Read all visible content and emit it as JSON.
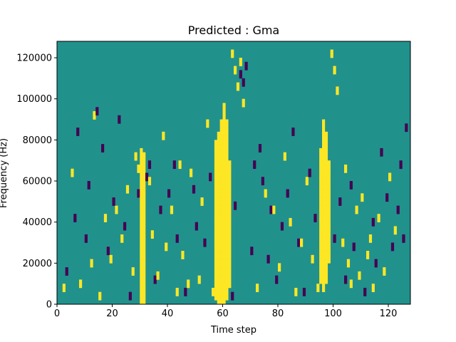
{
  "chart_data": {
    "type": "heatmap",
    "title": "Predicted : Gma",
    "xlabel": "Time step",
    "ylabel": "Frequency (Hz)",
    "xlim": [
      0,
      128
    ],
    "ylim": [
      0,
      128000
    ],
    "x_ticks": [
      0,
      20,
      40,
      60,
      80,
      100,
      120
    ],
    "y_ticks": [
      0,
      20000,
      40000,
      60000,
      80000,
      100000,
      120000
    ],
    "x_tick_labels": [
      "0",
      "20",
      "40",
      "60",
      "80",
      "100",
      "120"
    ],
    "y_tick_labels": [
      "0",
      "20000",
      "40000",
      "60000",
      "80000",
      "100000",
      "120000"
    ],
    "grid": false,
    "colormap": "viridis",
    "colors": {
      "background_value": "#21918c",
      "high_value": "#fde725",
      "low_value": "#440154"
    },
    "bins": {
      "time_steps": 128,
      "frequency_bins": 64,
      "bin_width_hz": 2000
    },
    "high_columns": [
      {
        "x": 30,
        "y": [
          0,
          76000
        ]
      },
      {
        "x": 31,
        "y": [
          0,
          74000
        ]
      },
      {
        "x": 57,
        "y": [
          2000,
          80000
        ]
      },
      {
        "x": 58,
        "y": [
          0,
          84000
        ]
      },
      {
        "x": 59,
        "y": [
          0,
          90000
        ]
      },
      {
        "x": 60,
        "y": [
          0,
          98000
        ]
      },
      {
        "x": 61,
        "y": [
          2000,
          90000
        ]
      },
      {
        "x": 62,
        "y": [
          8000,
          70000
        ]
      },
      {
        "x": 95,
        "y": [
          10000,
          76000
        ]
      },
      {
        "x": 96,
        "y": [
          6000,
          90000
        ]
      },
      {
        "x": 97,
        "y": [
          10000,
          84000
        ]
      },
      {
        "x": 98,
        "y": [
          20000,
          70000
        ]
      }
    ],
    "high_cells": [
      [
        2,
        6
      ],
      [
        5,
        62
      ],
      [
        8,
        8
      ],
      [
        12,
        18
      ],
      [
        13,
        90
      ],
      [
        15,
        2
      ],
      [
        17,
        40
      ],
      [
        19,
        20
      ],
      [
        21,
        44
      ],
      [
        23,
        30
      ],
      [
        25,
        54
      ],
      [
        27,
        14
      ],
      [
        28,
        70
      ],
      [
        29,
        64
      ],
      [
        33,
        58
      ],
      [
        34,
        32
      ],
      [
        36,
        12
      ],
      [
        38,
        80
      ],
      [
        39,
        26
      ],
      [
        41,
        44
      ],
      [
        43,
        3
      ],
      [
        44,
        66
      ],
      [
        45,
        22
      ],
      [
        47,
        8
      ],
      [
        48,
        62
      ],
      [
        51,
        10
      ],
      [
        52,
        48
      ],
      [
        54,
        86
      ],
      [
        56,
        4
      ],
      [
        63,
        120
      ],
      [
        64,
        112
      ],
      [
        65,
        104
      ],
      [
        66,
        116
      ],
      [
        67,
        96
      ],
      [
        72,
        6
      ],
      [
        75,
        52
      ],
      [
        78,
        44
      ],
      [
        80,
        16
      ],
      [
        82,
        70
      ],
      [
        84,
        38
      ],
      [
        86,
        4
      ],
      [
        88,
        28
      ],
      [
        90,
        58
      ],
      [
        92,
        20
      ],
      [
        94,
        6
      ],
      [
        99,
        120
      ],
      [
        100,
        112
      ],
      [
        101,
        102
      ],
      [
        103,
        28
      ],
      [
        104,
        64
      ],
      [
        105,
        18
      ],
      [
        106,
        8
      ],
      [
        108,
        44
      ],
      [
        109,
        12
      ],
      [
        110,
        50
      ],
      [
        112,
        22
      ],
      [
        113,
        30
      ],
      [
        114,
        6
      ],
      [
        116,
        40
      ],
      [
        118,
        14
      ],
      [
        120,
        60
      ],
      [
        122,
        34
      ]
    ],
    "low_cells": [
      [
        3,
        14
      ],
      [
        6,
        40
      ],
      [
        7,
        82
      ],
      [
        10,
        30
      ],
      [
        11,
        56
      ],
      [
        14,
        92
      ],
      [
        16,
        74
      ],
      [
        18,
        24
      ],
      [
        20,
        48
      ],
      [
        22,
        88
      ],
      [
        24,
        36
      ],
      [
        26,
        2
      ],
      [
        29,
        52
      ],
      [
        32,
        60
      ],
      [
        33,
        66
      ],
      [
        35,
        10
      ],
      [
        37,
        44
      ],
      [
        40,
        52
      ],
      [
        42,
        66
      ],
      [
        43,
        30
      ],
      [
        46,
        4
      ],
      [
        49,
        54
      ],
      [
        50,
        36
      ],
      [
        53,
        28
      ],
      [
        55,
        60
      ],
      [
        63,
        2
      ],
      [
        64,
        46
      ],
      [
        66,
        110
      ],
      [
        67,
        106
      ],
      [
        68,
        114
      ],
      [
        70,
        24
      ],
      [
        71,
        66
      ],
      [
        73,
        74
      ],
      [
        74,
        58
      ],
      [
        76,
        20
      ],
      [
        77,
        44
      ],
      [
        79,
        10
      ],
      [
        81,
        36
      ],
      [
        83,
        52
      ],
      [
        85,
        82
      ],
      [
        87,
        28
      ],
      [
        89,
        4
      ],
      [
        91,
        62
      ],
      [
        93,
        40
      ],
      [
        100,
        30
      ],
      [
        102,
        48
      ],
      [
        104,
        10
      ],
      [
        106,
        56
      ],
      [
        107,
        26
      ],
      [
        111,
        4
      ],
      [
        114,
        38
      ],
      [
        115,
        18
      ],
      [
        117,
        72
      ],
      [
        119,
        50
      ],
      [
        121,
        26
      ],
      [
        123,
        44
      ],
      [
        124,
        66
      ],
      [
        125,
        30
      ],
      [
        126,
        84
      ]
    ]
  }
}
